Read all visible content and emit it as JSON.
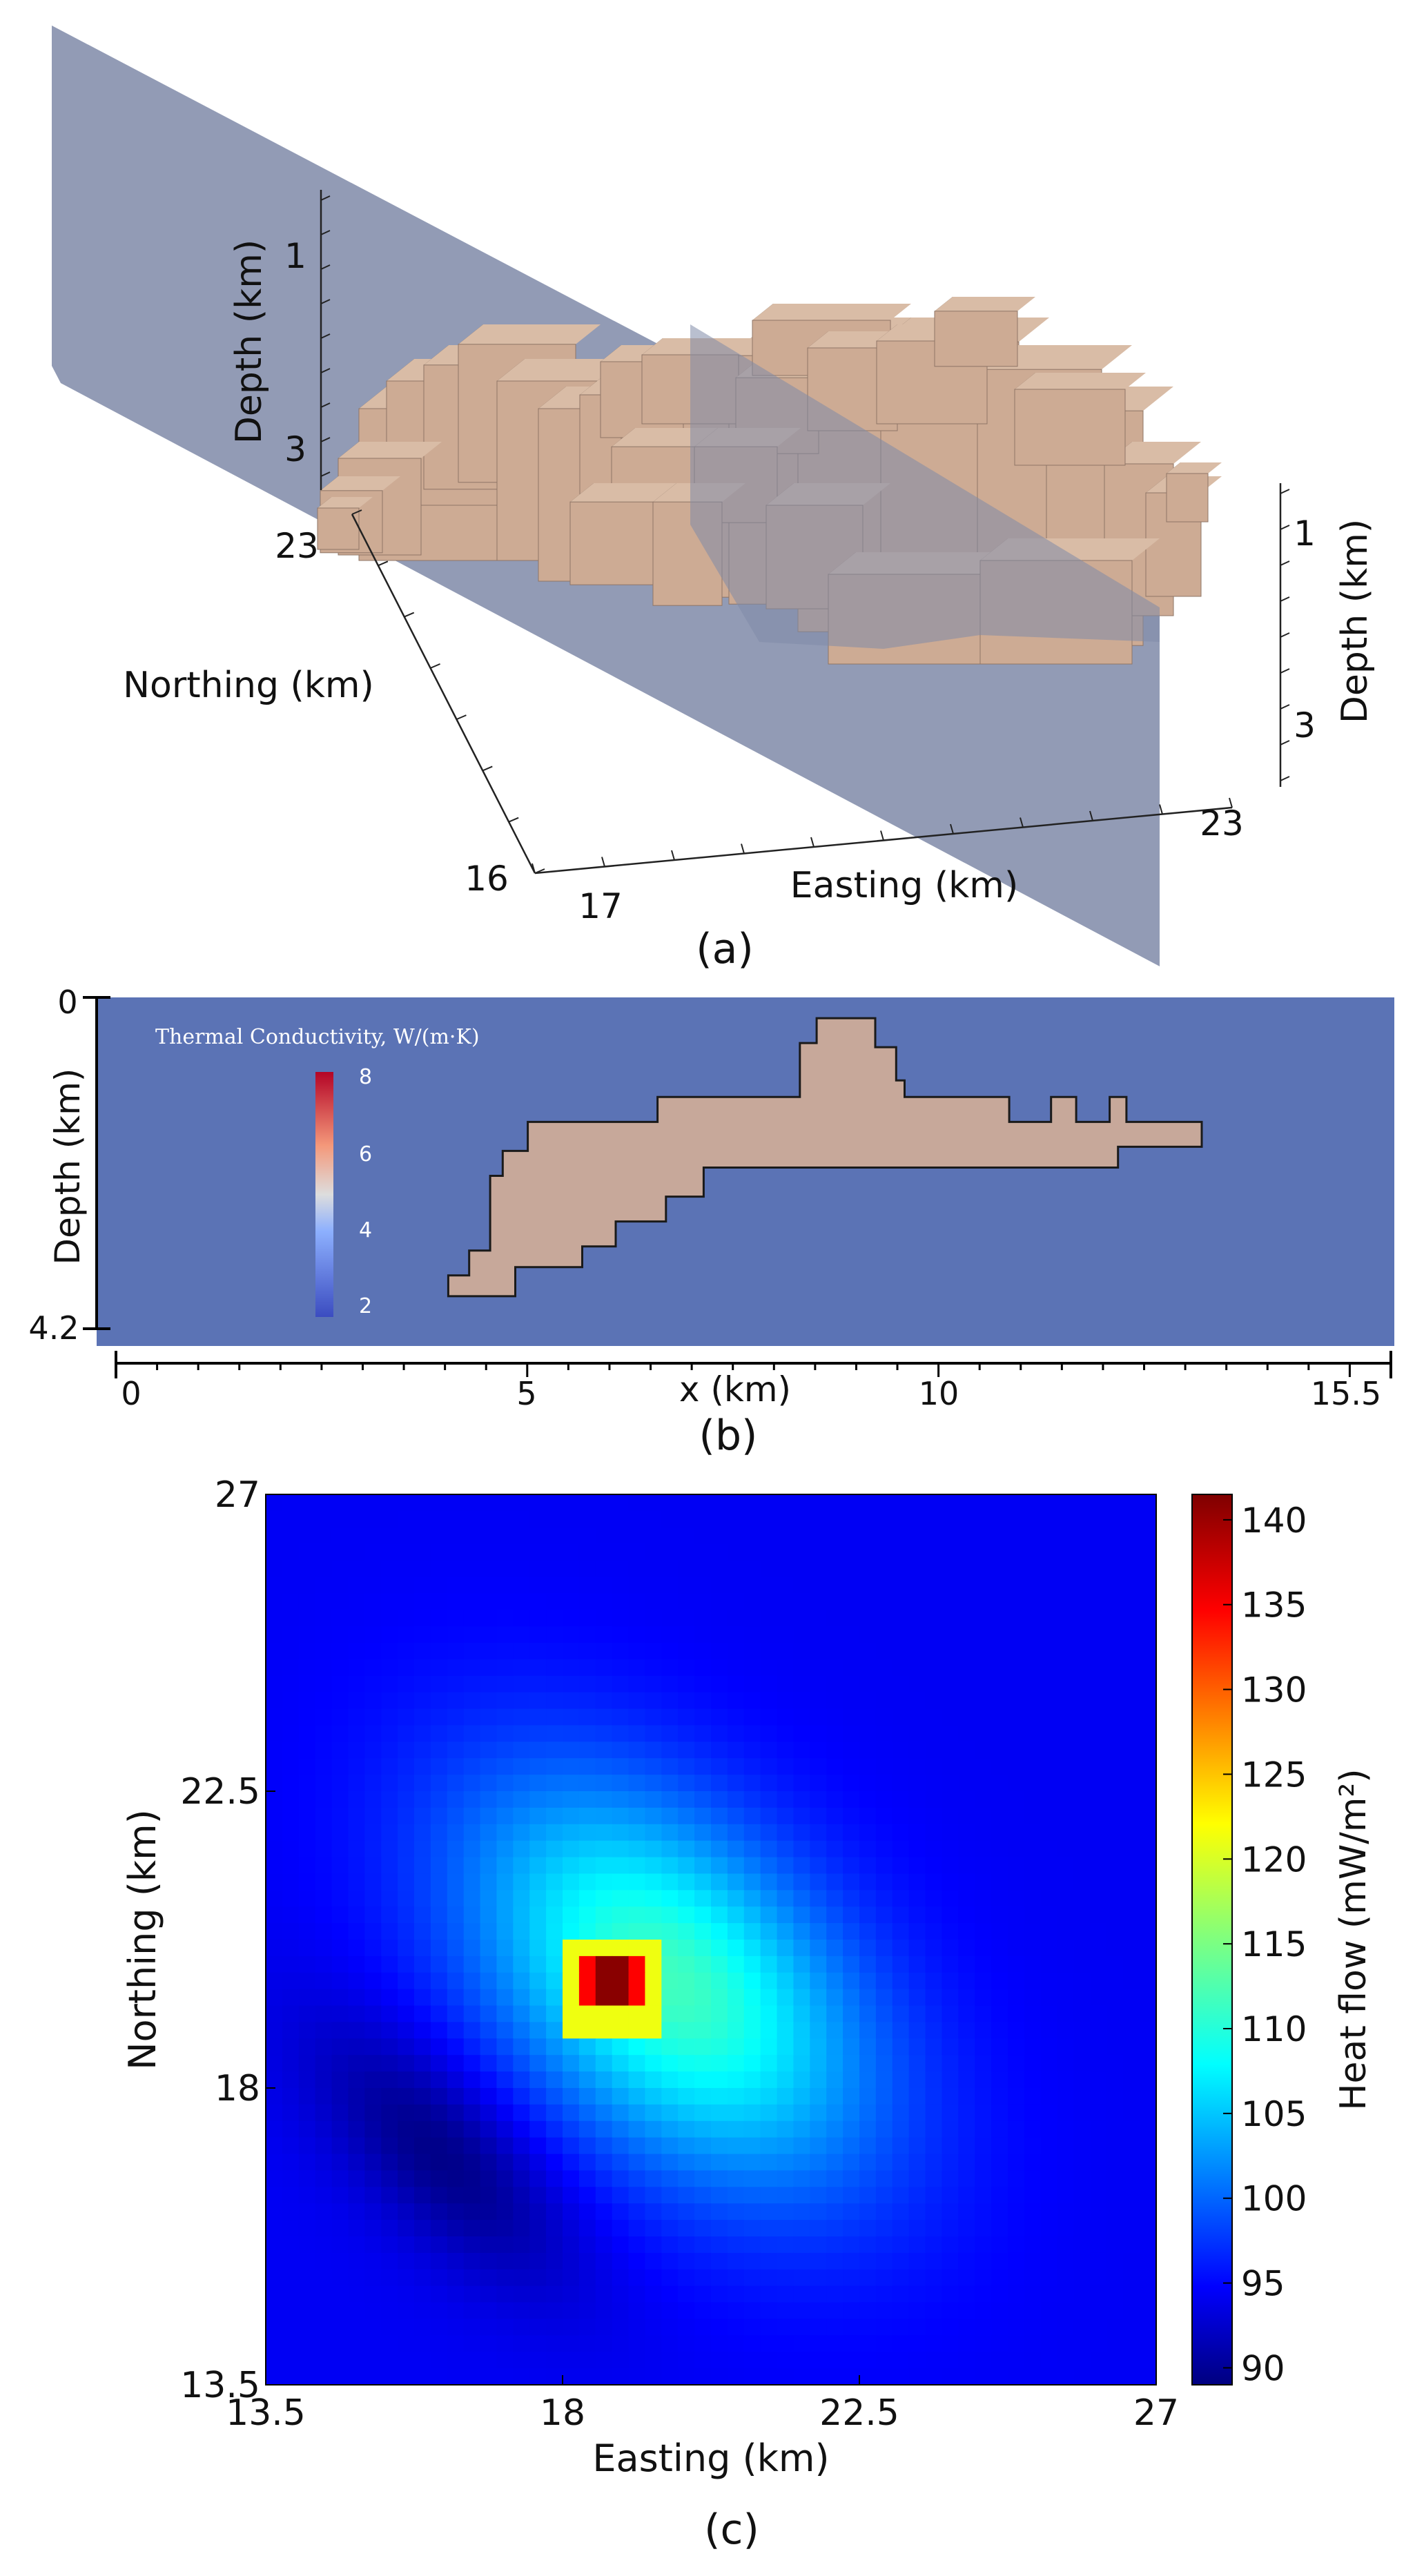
{
  "panels": {
    "a": {
      "label": "(a)",
      "axes": {
        "northing_label": "Northing (km)",
        "easting_label": "Easting (km)",
        "depth_label_left": "Depth (km)",
        "depth_label_right": "Depth (km)",
        "northing_ticks": [
          "23",
          "16"
        ],
        "easting_ticks": [
          "17",
          "23"
        ],
        "depth_ticks_left": [
          "1",
          "3"
        ],
        "depth_ticks_right": [
          "1",
          "3"
        ]
      },
      "colors": {
        "body": "#cdab94",
        "body_dark": "#3a2a22",
        "slice": "#7f8aa8",
        "slice_body": "#7b7d92"
      }
    },
    "b": {
      "label": "(b)",
      "ylabel": "Depth (km)",
      "xlabel": "x (km)",
      "y_ticks": [
        "0",
        "4.2"
      ],
      "x_ticks": [
        "0",
        "5",
        "10",
        "15.5"
      ],
      "colorbar_title": "Thermal Conductivity, W/(m·K)",
      "colorbar_ticks": [
        "8",
        "6",
        "4",
        "2"
      ],
      "colors": {
        "background": "#5b73b5",
        "body": "#c7a89a"
      }
    },
    "c": {
      "label": "(c)",
      "colorbar_label": "Heat flow (mW/m²)",
      "colorbar_ticks": [
        "140",
        "135",
        "130",
        "125",
        "120",
        "115",
        "110",
        "105",
        "100",
        "95",
        "90"
      ]
    }
  },
  "chart_data": [
    {
      "type": "3d-model",
      "title": "(a)",
      "xlabel": "Easting (km)",
      "ylabel": "Northing (km)",
      "zlabel": "Depth (km)",
      "easting_ticks": [
        17,
        23
      ],
      "northing_ticks": [
        16,
        23
      ],
      "depth_ticks": [
        1,
        3
      ]
    },
    {
      "type": "cross-section",
      "title": "(b)",
      "xlabel": "x (km)",
      "ylabel": "Depth (km)",
      "xlim": [
        0,
        15.5
      ],
      "ylim": [
        0,
        4.2
      ],
      "colorbar": {
        "label": "Thermal Conductivity, W/(m·K)",
        "range": [
          2,
          8
        ],
        "ticks": [
          2,
          4,
          6,
          8
        ]
      },
      "body_outline_km": [
        [
          4.2,
          3.6
        ],
        [
          4.2,
          3.35
        ],
        [
          4.45,
          3.35
        ],
        [
          4.45,
          3.05
        ],
        [
          4.7,
          3.05
        ],
        [
          4.7,
          2.15
        ],
        [
          4.85,
          2.15
        ],
        [
          4.85,
          1.85
        ],
        [
          5.15,
          1.85
        ],
        [
          5.15,
          1.5
        ],
        [
          6.7,
          1.5
        ],
        [
          6.7,
          1.2
        ],
        [
          8.4,
          1.2
        ],
        [
          8.4,
          0.55
        ],
        [
          8.6,
          0.55
        ],
        [
          8.6,
          0.25
        ],
        [
          9.3,
          0.25
        ],
        [
          9.3,
          0.6
        ],
        [
          9.55,
          0.6
        ],
        [
          9.55,
          1.0
        ],
        [
          9.65,
          1.0
        ],
        [
          9.65,
          1.2
        ],
        [
          10.9,
          1.2
        ],
        [
          10.9,
          1.5
        ],
        [
          11.4,
          1.5
        ],
        [
          11.4,
          1.2
        ],
        [
          11.7,
          1.2
        ],
        [
          11.7,
          1.5
        ],
        [
          12.1,
          1.5
        ],
        [
          12.1,
          1.2
        ],
        [
          12.3,
          1.2
        ],
        [
          12.3,
          1.5
        ],
        [
          13.2,
          1.5
        ],
        [
          13.2,
          1.8
        ],
        [
          12.2,
          1.8
        ],
        [
          12.2,
          2.05
        ],
        [
          7.25,
          2.05
        ],
        [
          7.25,
          2.4
        ],
        [
          6.8,
          2.4
        ],
        [
          6.8,
          2.7
        ],
        [
          6.2,
          2.7
        ],
        [
          6.2,
          3.0
        ],
        [
          5.8,
          3.0
        ],
        [
          5.8,
          3.25
        ],
        [
          5.0,
          3.25
        ],
        [
          5.0,
          3.6
        ]
      ],
      "body_conductivity": 5.5,
      "background_conductivity": 2.2
    },
    {
      "type": "heatmap",
      "title": "(c)",
      "xlabel": "Easting (km)",
      "ylabel": "Northing (km)",
      "xlim": [
        13.5,
        27
      ],
      "ylim": [
        13.5,
        27
      ],
      "x_ticks": [
        13.5,
        18,
        22.5,
        27
      ],
      "y_ticks": [
        13.5,
        18,
        22.5,
        27
      ],
      "colormap": "jet",
      "clim": [
        89,
        141.5
      ],
      "colorbar": {
        "label": "Heat flow (mW/m²)",
        "ticks": [
          90,
          95,
          100,
          105,
          110,
          115,
          120,
          125,
          130,
          135,
          140
        ]
      },
      "grid_cells": 54,
      "field": {
        "background": 95,
        "peak": {
          "easting": 18.75,
          "northing": 19.6,
          "value": 141,
          "half_width_km": 0.5
        },
        "yellow_ring": {
          "value": 121,
          "half_width_km": 0.75
        },
        "halo": {
          "easting": 19.6,
          "northing": 19.6,
          "amplitude": 17,
          "sigma_major_km": 2.6,
          "sigma_minor_km": 1.6,
          "angle_deg": -45
        },
        "trough": {
          "easting": 16.2,
          "northing": 17.0,
          "amplitude": -6,
          "sigma_major_km": 1.8,
          "sigma_minor_km": 0.8,
          "angle_deg": -45
        }
      }
    }
  ]
}
